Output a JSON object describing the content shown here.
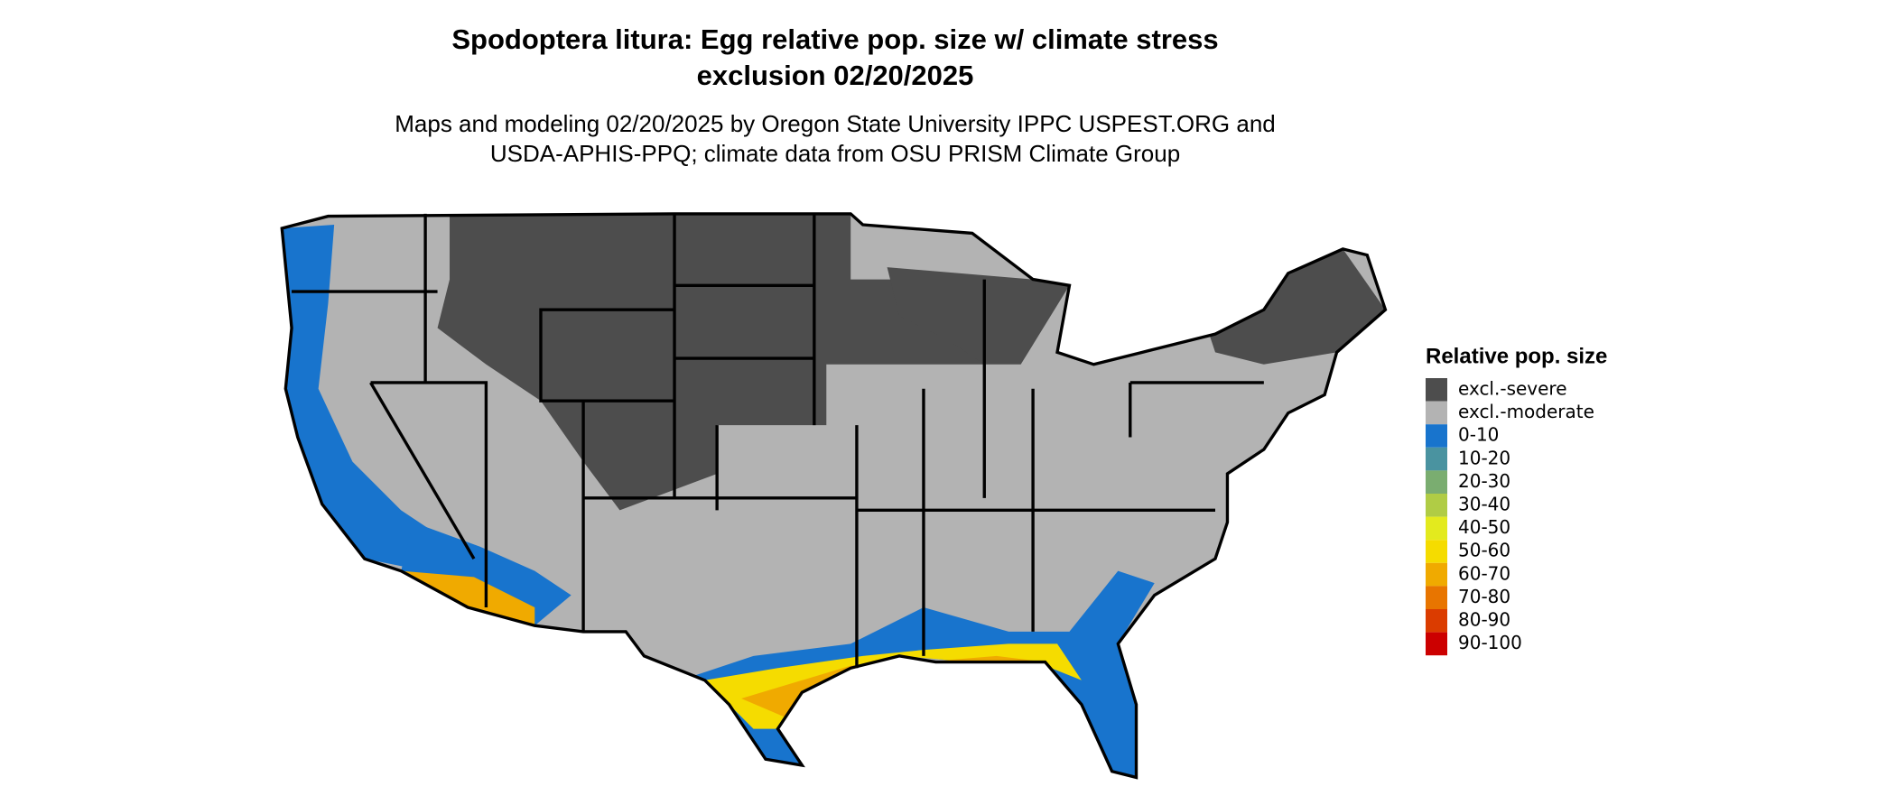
{
  "title_lines": [
    "Spodoptera litura: Egg relative pop. size w/ climate stress",
    "exclusion 02/20/2025"
  ],
  "subtitle_lines": [
    "Maps and modeling 02/20/2025 by Oregon State University IPPC USPEST.ORG and",
    "USDA-APHIS-PPQ; climate data from OSU PRISM Climate Group"
  ],
  "legend": {
    "title": "Relative pop. size",
    "items": [
      {
        "label": "excl.-severe",
        "color": "#4d4d4d"
      },
      {
        "label": "excl.-moderate",
        "color": "#b3b3b3"
      },
      {
        "label": "0-10",
        "color": "#1874cd"
      },
      {
        "label": "10-20",
        "color": "#4a93a0"
      },
      {
        "label": "20-30",
        "color": "#7aad70"
      },
      {
        "label": "30-40",
        "color": "#b0cc45"
      },
      {
        "label": "40-50",
        "color": "#e3ea1e"
      },
      {
        "label": "50-60",
        "color": "#f5dc00"
      },
      {
        "label": "60-70",
        "color": "#f0aa00"
      },
      {
        "label": "70-80",
        "color": "#e87500"
      },
      {
        "label": "80-90",
        "color": "#db3c00"
      },
      {
        "label": "90-100",
        "color": "#cc0000"
      }
    ]
  }
}
